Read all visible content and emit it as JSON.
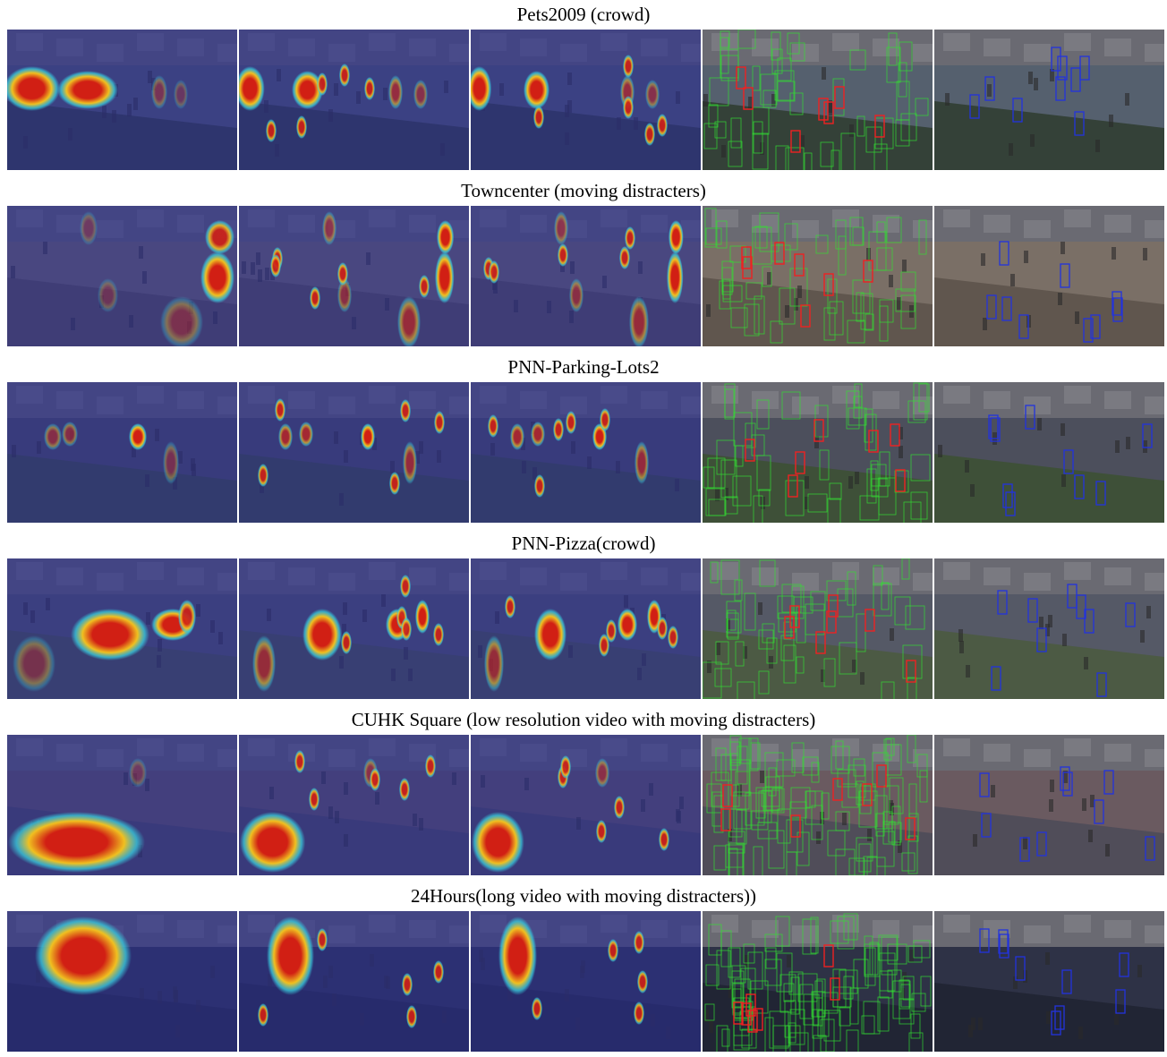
{
  "figure": {
    "rows": [
      {
        "title": "Pets2009 (crowd)"
      },
      {
        "title": "Towncenter (moving distracters)"
      },
      {
        "title": "PNN-Parking-Lots2"
      },
      {
        "title": "PNN-Pizza(crowd)"
      },
      {
        "title": "CUHK Square (low resolution video with moving distracters)"
      },
      {
        "title": "24Hours(long video with moving distracters))"
      }
    ],
    "colors": {
      "heatmap_base": "#2b2f8f",
      "heatmap_hot": "#d11f14",
      "heatmap_warm": "#f0c020",
      "heatmap_cool": "#39c5d8",
      "proposal_box": "#33dd33",
      "detection_box": "#ee2222",
      "tracking_box": "#2233dd"
    },
    "panel_types": [
      "heatmap-1",
      "heatmap-2",
      "heatmap-3",
      "proposals-detections",
      "tracking-result"
    ]
  }
}
